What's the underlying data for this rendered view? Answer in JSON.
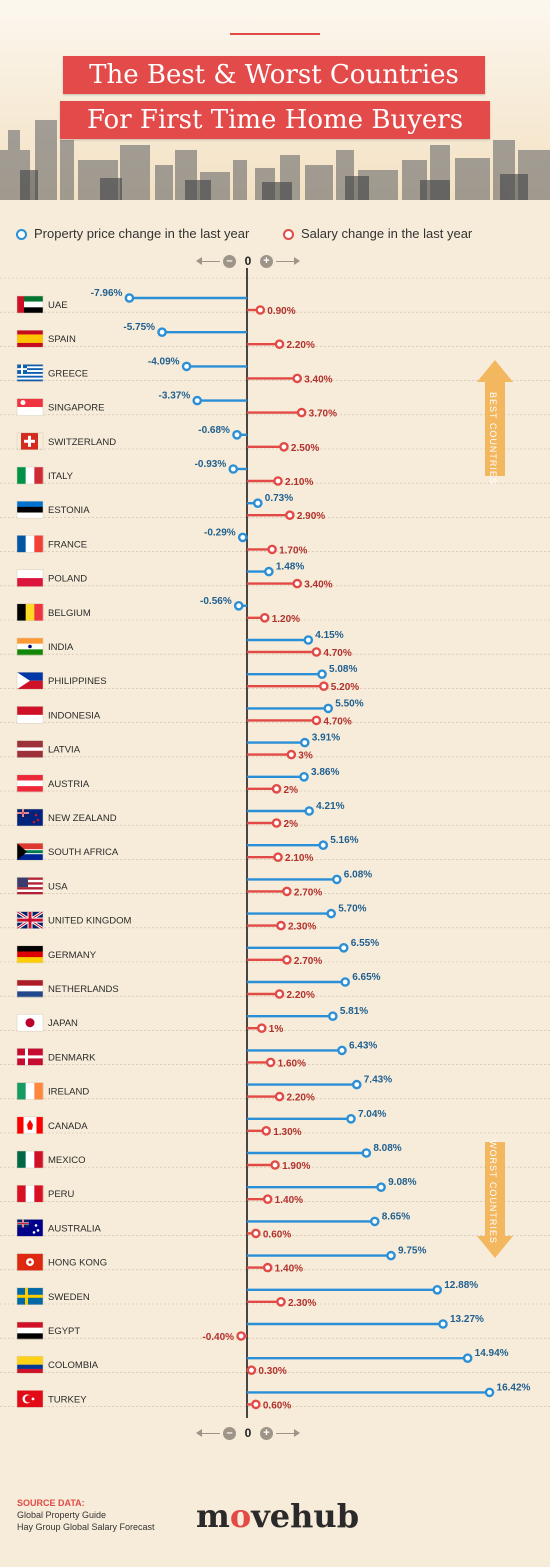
{
  "header": {
    "title_line1": "The Best & Worst Countries",
    "title_line2": "For First Time Home Buyers"
  },
  "legend": {
    "property_label": "Property price change in the last year",
    "salary_label": "Salary change in the last year"
  },
  "zero_label": "0",
  "side_labels": {
    "best": "BEST COUNTRIES",
    "worst": "WORST COUNTRIES"
  },
  "colors": {
    "property": "#2a8fd6",
    "salary": "#e24a45",
    "accent": "#e34b4a",
    "arrow": "#f3b760"
  },
  "chart_data": {
    "type": "bar",
    "series": [
      {
        "name": "Property price change in the last year",
        "values": [
          -7.96,
          -5.75,
          -4.09,
          -3.37,
          -0.68,
          -0.93,
          0.73,
          -0.29,
          1.48,
          -0.56,
          4.15,
          5.08,
          5.5,
          3.91,
          3.86,
          4.21,
          5.16,
          6.08,
          5.7,
          6.55,
          6.65,
          5.81,
          6.43,
          7.43,
          7.04,
          8.08,
          9.08,
          8.65,
          9.75,
          12.88,
          13.27,
          14.94,
          16.42
        ]
      },
      {
        "name": "Salary change in the last year",
        "values": [
          0.9,
          2.2,
          3.4,
          3.7,
          2.5,
          2.1,
          2.9,
          1.7,
          3.4,
          1.2,
          4.7,
          5.2,
          4.7,
          3,
          2,
          2,
          2.1,
          2.7,
          2.3,
          2.7,
          2.2,
          1,
          1.6,
          2.2,
          1.3,
          1.9,
          1.4,
          0.6,
          1.4,
          2.3,
          -0.4,
          0.3,
          0.6
        ]
      }
    ],
    "categories": [
      "UAE",
      "SPAIN",
      "GREECE",
      "SINGAPORE",
      "SWITZERLAND",
      "ITALY",
      "ESTONIA",
      "FRANCE",
      "POLAND",
      "BELGIUM",
      "INDIA",
      "PHILIPPINES",
      "INDONESIA",
      "LATVIA",
      "AUSTRIA",
      "NEW ZEALAND",
      "SOUTH AFRICA",
      "USA",
      "UNITED KINGDOM",
      "GERMANY",
      "NETHERLANDS",
      "JAPAN",
      "DENMARK",
      "IRELAND",
      "CANADA",
      "MEXICO",
      "PERU",
      "AUSTRALIA",
      "HONG KONG",
      "SWEDEN",
      "EGYPT",
      "COLOMBIA",
      "TURKEY"
    ],
    "property_labels": [
      "-7.96%",
      "-5.75%",
      "-4.09%",
      "-3.37%",
      "-0.68%",
      "-0.93%",
      "0.73%",
      "-0.29%",
      "1.48%",
      "-0.56%",
      "4.15%",
      "5.08%",
      "5.50%",
      "3.91%",
      "3.86%",
      "4.21%",
      "5.16%",
      "6.08%",
      "5.70%",
      "6.55%",
      "6.65%",
      "5.81%",
      "6.43%",
      "7.43%",
      "7.04%",
      "8.08%",
      "9.08%",
      "8.65%",
      "9.75%",
      "12.88%",
      "13.27%",
      "14.94%",
      "16.42%"
    ],
    "salary_labels": [
      "0.90%",
      "2.20%",
      "3.40%",
      "3.70%",
      "2.50%",
      "2.10%",
      "2.90%",
      "1.70%",
      "3.40%",
      "1.20%",
      "4.70%",
      "5.20%",
      "4.70%",
      "3%",
      "2%",
      "2%",
      "2.10%",
      "2.70%",
      "2.30%",
      "2.70%",
      "2.20%",
      "1%",
      "1.60%",
      "2.20%",
      "1.30%",
      "1.90%",
      "1.40%",
      "0.60%",
      "1.40%",
      "2.30%",
      "-0.40%",
      "0.30%",
      "0.60%"
    ],
    "flags": [
      "uae",
      "spain",
      "greece",
      "singapore",
      "switzerland",
      "italy",
      "estonia",
      "france",
      "poland",
      "belgium",
      "india",
      "philippines",
      "indonesia",
      "latvia",
      "austria",
      "new-zealand",
      "south-africa",
      "usa",
      "united-kingdom",
      "germany",
      "netherlands",
      "japan",
      "denmark",
      "ireland",
      "canada",
      "mexico",
      "peru",
      "australia",
      "hong-kong",
      "sweden",
      "egypt",
      "colombia",
      "turkey"
    ],
    "grid": true
  },
  "source": {
    "title": "SOURCE DATA:",
    "line1": "Global Property Guide",
    "line2": "Hay Group Global Salary Forecast"
  },
  "logo": {
    "part1": "m",
    "part2": "o",
    "part3": "vehub"
  }
}
